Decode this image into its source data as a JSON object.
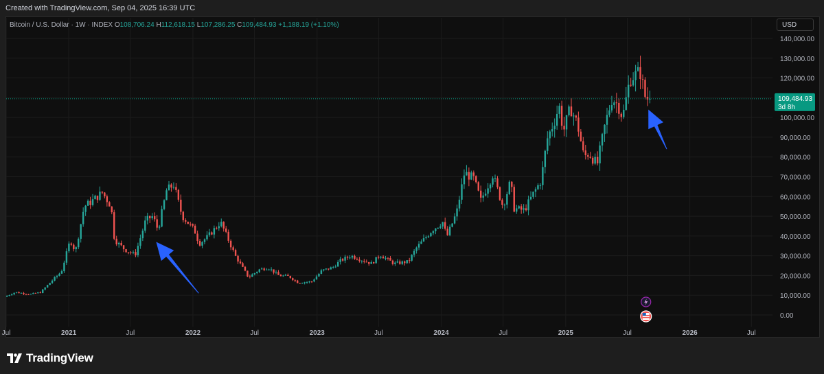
{
  "header": {
    "created_text": "Created with TradingView.com, Sep 04, 2025 16:39 UTC"
  },
  "legend": {
    "symbol": "Bitcoin / U.S. Dollar · 1W · INDEX",
    "open_label": "O",
    "open": "108,706.24",
    "high_label": "H",
    "high": "112,618.15",
    "low_label": "L",
    "low": "107,286.25",
    "close_label": "C",
    "close": "109,484.93",
    "change": "+1,188.19 (+1.10%)"
  },
  "currency_button": "USD",
  "price_tag": {
    "value": "109,484.93",
    "countdown": "3d 8h"
  },
  "brand": "TradingView",
  "colors": {
    "up": "#26a69a",
    "down": "#ef5350",
    "background": "#0f0f0f",
    "grid": "#1c1c1c",
    "arrow": "#2962ff",
    "price_tag": "#089981"
  },
  "chart_data": {
    "type": "candlestick",
    "interval": "1W",
    "y_range": [
      0,
      144000
    ],
    "y_ticks": [
      "140,000.00",
      "130,000.00",
      "120,000.00",
      "110,000.00",
      "100,000.00",
      "90,000.00",
      "80,000.00",
      "70,000.00",
      "60,000.00",
      "50,000.00",
      "40,000.00",
      "30,000.00",
      "20,000.00",
      "10,000.00",
      "0.00"
    ],
    "y_tick_values": [
      140000,
      130000,
      120000,
      110000,
      100000,
      90000,
      80000,
      70000,
      60000,
      50000,
      40000,
      30000,
      20000,
      10000,
      0
    ],
    "x_range": [
      "2020-07-01",
      "2026-09-01"
    ],
    "x_ticks": [
      {
        "label": "Jul",
        "date": "2020-07-01"
      },
      {
        "label": "2021",
        "date": "2021-01-01"
      },
      {
        "label": "Jul",
        "date": "2021-07-01"
      },
      {
        "label": "2022",
        "date": "2022-01-01"
      },
      {
        "label": "Jul",
        "date": "2022-07-01"
      },
      {
        "label": "2023",
        "date": "2023-01-01"
      },
      {
        "label": "Jul",
        "date": "2023-07-01"
      },
      {
        "label": "2024",
        "date": "2024-01-01"
      },
      {
        "label": "Jul",
        "date": "2024-07-01"
      },
      {
        "label": "2025",
        "date": "2025-01-01"
      },
      {
        "label": "Jul",
        "date": "2025-07-01"
      },
      {
        "label": "2026",
        "date": "2026-01-01"
      },
      {
        "label": "Jul",
        "date": "2026-07-01"
      }
    ],
    "price_path": [
      [
        "2020-07-01",
        9200
      ],
      [
        "2020-08-01",
        11500
      ],
      [
        "2020-09-15",
        10500
      ],
      [
        "2020-10-15",
        11500
      ],
      [
        "2020-11-15",
        17000
      ],
      [
        "2020-12-15",
        22000
      ],
      [
        "2021-01-10",
        38000
      ],
      [
        "2021-01-25",
        32000
      ],
      [
        "2021-02-20",
        55000
      ],
      [
        "2021-03-10",
        57000
      ],
      [
        "2021-04-14",
        62000
      ],
      [
        "2021-05-10",
        55000
      ],
      [
        "2021-05-20",
        38000
      ],
      [
        "2021-06-20",
        33000
      ],
      [
        "2021-07-20",
        30500
      ],
      [
        "2021-08-20",
        48000
      ],
      [
        "2021-09-10",
        50000
      ],
      [
        "2021-09-25",
        43000
      ],
      [
        "2021-10-20",
        63000
      ],
      [
        "2021-11-10",
        66000
      ],
      [
        "2021-12-05",
        50000
      ],
      [
        "2022-01-10",
        43000
      ],
      [
        "2022-01-24",
        36000
      ],
      [
        "2022-02-20",
        40000
      ],
      [
        "2022-03-28",
        47000
      ],
      [
        "2022-04-15",
        40000
      ],
      [
        "2022-05-10",
        30000
      ],
      [
        "2022-06-18",
        19000
      ],
      [
        "2022-07-20",
        23000
      ],
      [
        "2022-08-15",
        24000
      ],
      [
        "2022-09-15",
        20000
      ],
      [
        "2022-10-15",
        19500
      ],
      [
        "2022-11-10",
        16500
      ],
      [
        "2022-12-20",
        16800
      ],
      [
        "2023-01-20",
        22500
      ],
      [
        "2023-02-20",
        24000
      ],
      [
        "2023-03-15",
        27500
      ],
      [
        "2023-04-15",
        30000
      ],
      [
        "2023-06-15",
        26000
      ],
      [
        "2023-07-10",
        30500
      ],
      [
        "2023-08-20",
        26000
      ],
      [
        "2023-10-01",
        27000
      ],
      [
        "2023-10-25",
        34000
      ],
      [
        "2023-12-10",
        43000
      ],
      [
        "2024-01-10",
        47000
      ],
      [
        "2024-01-22",
        39500
      ],
      [
        "2024-02-20",
        52000
      ],
      [
        "2024-03-14",
        72000
      ],
      [
        "2024-04-10",
        69000
      ],
      [
        "2024-05-01",
        58000
      ],
      [
        "2024-06-05",
        71000
      ],
      [
        "2024-07-05",
        55000
      ],
      [
        "2024-07-28",
        68000
      ],
      [
        "2024-08-05",
        54000
      ],
      [
        "2024-09-06",
        53000
      ],
      [
        "2024-10-01",
        61000
      ],
      [
        "2024-10-25",
        68000
      ],
      [
        "2024-11-12",
        89000
      ],
      [
        "2024-12-05",
        99000
      ],
      [
        "2024-12-17",
        106000
      ],
      [
        "2024-12-30",
        93000
      ],
      [
        "2025-01-20",
        105000
      ],
      [
        "2025-02-10",
        96000
      ],
      [
        "2025-02-28",
        80000
      ],
      [
        "2025-03-15",
        82000
      ],
      [
        "2025-04-08",
        76000
      ],
      [
        "2025-05-01",
        96000
      ],
      [
        "2025-05-22",
        110000
      ],
      [
        "2025-06-10",
        106000
      ],
      [
        "2025-06-22",
        100000
      ],
      [
        "2025-07-14",
        120000
      ],
      [
        "2025-08-14",
        123000
      ],
      [
        "2025-08-25",
        111000
      ],
      [
        "2025-09-04",
        109485
      ]
    ],
    "events": [
      {
        "name": "earnings-flash-icon",
        "date": "2025-08-25"
      },
      {
        "name": "us-flag-event-icon",
        "date": "2025-08-25"
      }
    ],
    "annotations": [
      {
        "type": "arrow",
        "from_date": "2022-01-18",
        "from_price": 11000,
        "to_date": "2021-09-15",
        "to_price": 37000
      },
      {
        "type": "arrow",
        "from_date": "2025-10-25",
        "from_price": 84000,
        "to_date": "2025-09-01",
        "to_price": 104000
      }
    ],
    "current_price": 109484.93
  }
}
